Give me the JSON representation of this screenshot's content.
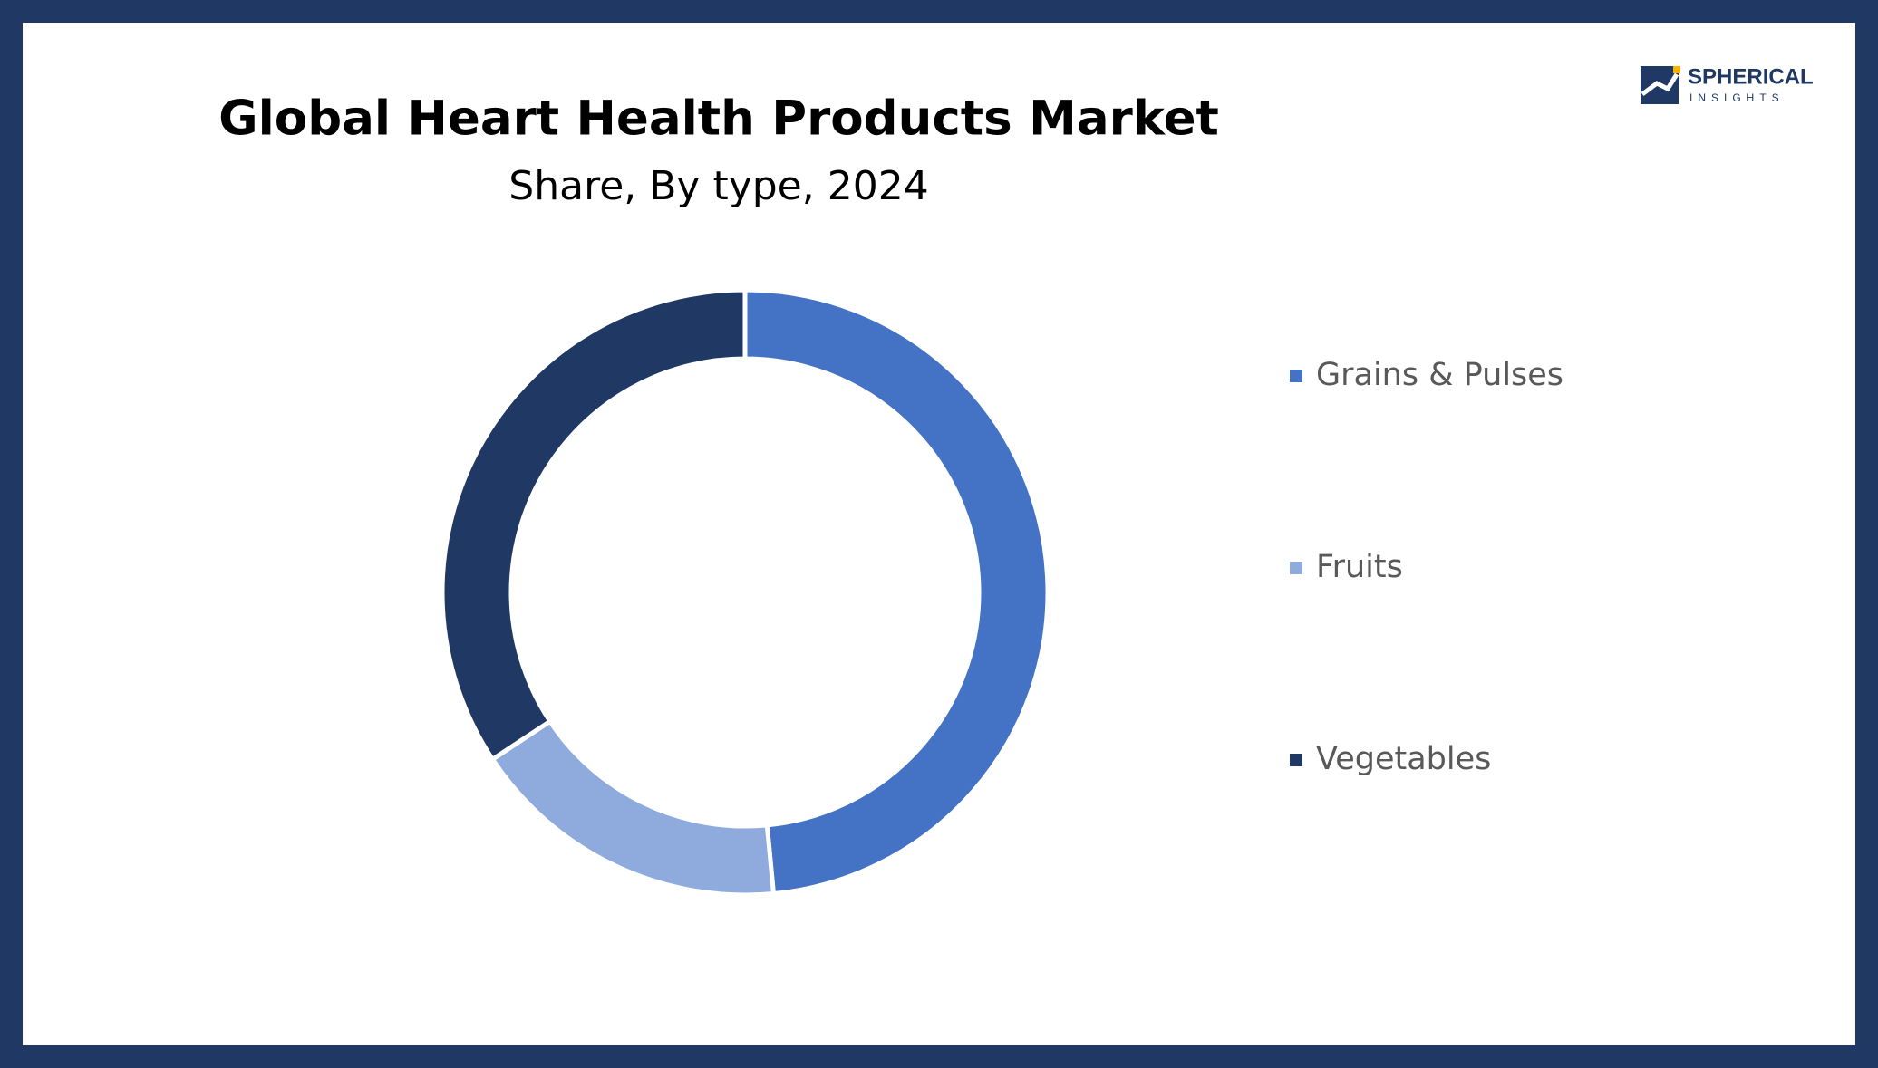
{
  "logo": {
    "name": "SPHERICAL",
    "tagline": "INSIGHTS"
  },
  "chart_data": {
    "type": "donut",
    "title": "Global Heart Health Products Market",
    "subtitle": "Share, By type, 2024",
    "categories": [
      "Grains & Pulses",
      "Fruits",
      "Vegetables"
    ],
    "values": [
      48.5,
      17.2,
      34.3
    ],
    "colors": [
      "#4472c4",
      "#8faadc",
      "#203864"
    ],
    "legend": "right"
  }
}
